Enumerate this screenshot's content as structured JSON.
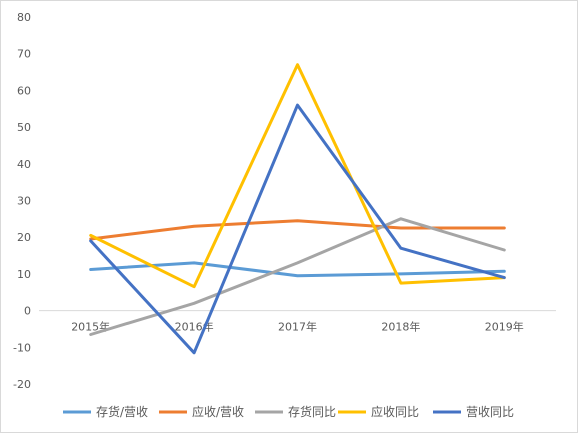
{
  "chart_data": {
    "type": "line",
    "categories": [
      "2015年",
      "2016年",
      "2017年",
      "2018年",
      "2019年"
    ],
    "ylim": [
      -20,
      80
    ],
    "yticks": [
      "-20",
      "-10",
      "0",
      "10",
      "20",
      "30",
      "40",
      "50",
      "60",
      "70",
      "80"
    ],
    "grid": false,
    "legend_position": "bottom",
    "series": [
      {
        "name": "存货/营收",
        "color": "#5B9BD5",
        "values": [
          11.2,
          13.0,
          9.5,
          10.0,
          10.7
        ]
      },
      {
        "name": "应收/营收",
        "color": "#ED7D31",
        "values": [
          19.5,
          23.0,
          24.5,
          22.5,
          22.5
        ]
      },
      {
        "name": "存货同比",
        "color": "#A5A5A5",
        "values": [
          -6.5,
          2.0,
          13.0,
          25.0,
          16.5
        ]
      },
      {
        "name": "应收同比",
        "color": "#FFC000",
        "values": [
          20.5,
          6.5,
          67.0,
          7.5,
          9.0
        ]
      },
      {
        "name": "营收同比",
        "color": "#4472C4",
        "values": [
          19.0,
          -11.5,
          56.0,
          17.0,
          9.0
        ]
      }
    ]
  }
}
